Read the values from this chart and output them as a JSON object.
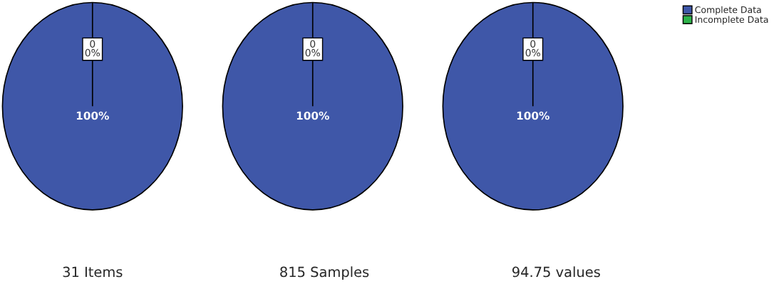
{
  "chart_data": [
    {
      "type": "pie",
      "categories": [
        null,
        null
      ],
      "values": [
        100,
        0
      ],
      "colors": [
        "#3f57a8",
        "#2db34a"
      ],
      "value_labels": [
        "100%",
        "0\n0%"
      ],
      "annotations": [
        "31 Items"
      ]
    },
    {
      "type": "pie",
      "categories": [
        null,
        null
      ],
      "values": [
        100,
        0
      ],
      "colors": [
        "#3f57a8",
        "#2db34a"
      ],
      "value_labels": [
        "100%",
        "0\n0%"
      ],
      "annotations": [
        "815 Samples"
      ]
    },
    {
      "type": "pie",
      "categories": [
        "Complete Data",
        "Incomplete Data"
      ],
      "values": [
        100,
        0
      ],
      "colors": [
        "#3f57a8",
        "#2db34a"
      ],
      "value_labels": [
        "100%",
        "0\n0%"
      ],
      "annotations": [
        "94.75 values"
      ],
      "legend": "top right"
    }
  ]
}
